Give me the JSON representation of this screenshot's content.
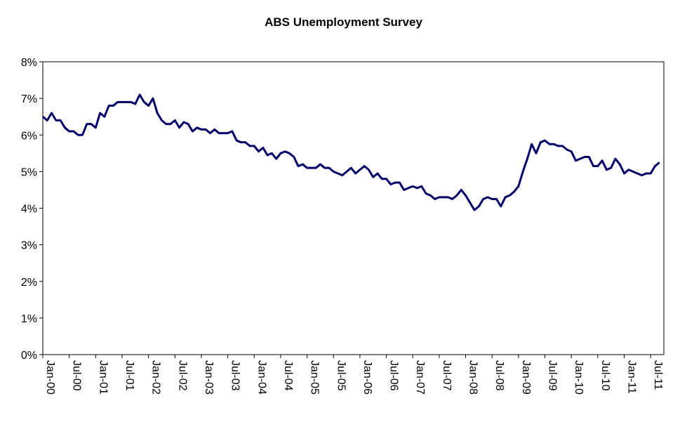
{
  "chart_data": {
    "type": "line",
    "title": "ABS Unemployment Survey",
    "xlabel": "",
    "ylabel": "",
    "ylim": [
      0,
      8
    ],
    "yticks": [
      "0%",
      "1%",
      "2%",
      "3%",
      "4%",
      "5%",
      "6%",
      "7%",
      "8%"
    ],
    "xticks": [
      "Jan-00",
      "Jul-00",
      "Jan-01",
      "Jul-01",
      "Jan-02",
      "Jul-02",
      "Jan-03",
      "Jul-03",
      "Jan-04",
      "Jul-04",
      "Jan-05",
      "Jul-05",
      "Jan-06",
      "Jul-06",
      "Jan-07",
      "Jul-07",
      "Jan-08",
      "Jul-08",
      "Jan-09",
      "Jul-09",
      "Jan-10",
      "Jul-10",
      "Jan-11",
      "Jul-11"
    ],
    "grid": false,
    "legend": "none",
    "line_color": "#000066",
    "series": [
      {
        "x_start": "Jan-00",
        "values": [
          6.5,
          6.4,
          6.6,
          6.4,
          6.4,
          6.2,
          6.1,
          6.1,
          6.0,
          6.0,
          6.3,
          6.3,
          6.2,
          6.6,
          6.5,
          6.8,
          6.8,
          6.9,
          6.9,
          6.9,
          6.9,
          6.85,
          7.1,
          6.9,
          6.8,
          7.0,
          6.6,
          6.4,
          6.3,
          6.3,
          6.4,
          6.2,
          6.35,
          6.3,
          6.1,
          6.2,
          6.15,
          6.15,
          6.05,
          6.15,
          6.05,
          6.05,
          6.05,
          6.1,
          5.85,
          5.8,
          5.8,
          5.7,
          5.7,
          5.55,
          5.65,
          5.45,
          5.5,
          5.35,
          5.5,
          5.55,
          5.5,
          5.4,
          5.15,
          5.2,
          5.1,
          5.1,
          5.1,
          5.2,
          5.1,
          5.1,
          5.0,
          4.95,
          4.9,
          5.0,
          5.1,
          4.95,
          5.05,
          5.15,
          5.05,
          4.85,
          4.95,
          4.8,
          4.8,
          4.65,
          4.7,
          4.7,
          4.5,
          4.55,
          4.6,
          4.55,
          4.6,
          4.4,
          4.35,
          4.25,
          4.3,
          4.3,
          4.3,
          4.25,
          4.35,
          4.5,
          4.35,
          4.15,
          3.95,
          4.05,
          4.25,
          4.3,
          4.25,
          4.25,
          4.05,
          4.3,
          4.35,
          4.45,
          4.6,
          5.0,
          5.35,
          5.75,
          5.5,
          5.8,
          5.85,
          5.75,
          5.75,
          5.7,
          5.7,
          5.6,
          5.55,
          5.3,
          5.35,
          5.4,
          5.4,
          5.15,
          5.15,
          5.3,
          5.05,
          5.1,
          5.35,
          5.2,
          4.95,
          5.05,
          5.0,
          4.95,
          4.9,
          4.95,
          4.95,
          5.15,
          5.25
        ]
      }
    ]
  }
}
